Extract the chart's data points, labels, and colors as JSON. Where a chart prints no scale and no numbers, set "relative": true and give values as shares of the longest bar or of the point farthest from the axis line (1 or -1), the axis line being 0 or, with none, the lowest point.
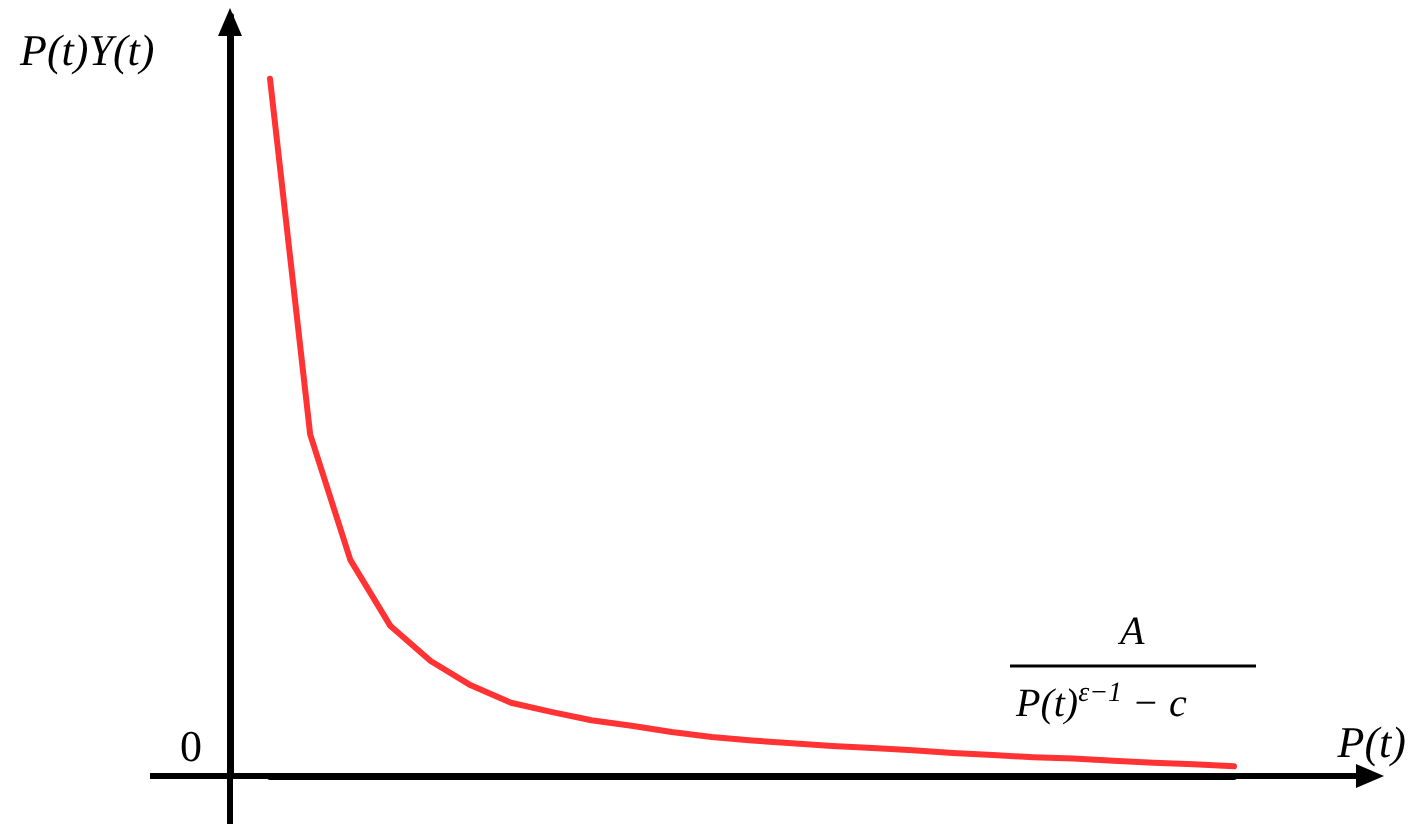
{
  "chart_data": {
    "type": "line",
    "relative": true,
    "xlabel": "P(t)",
    "ylabel": "P(t)Y(t)",
    "color": "#ff3333",
    "grid": false,
    "marker": "none",
    "line_style": "solid",
    "annotations": [
      "0",
      "A",
      "P(t)$^{ε−1}$ − c"
    ],
    "categories": [
      null,
      null,
      null,
      null,
      null,
      null,
      null,
      null,
      null,
      null,
      null,
      null,
      null,
      null,
      null,
      null,
      null,
      null,
      null,
      null,
      null,
      null,
      null,
      null,
      null
    ],
    "values": [
      1.0,
      0.49,
      0.31,
      0.215,
      0.165,
      0.13,
      0.105,
      0.092,
      0.08,
      0.072,
      0.063,
      0.056,
      0.051,
      0.047,
      0.043,
      0.04,
      0.037,
      0.033,
      0.03,
      0.027,
      0.025,
      0.022,
      0.019,
      0.017,
      0.014
    ]
  }
}
